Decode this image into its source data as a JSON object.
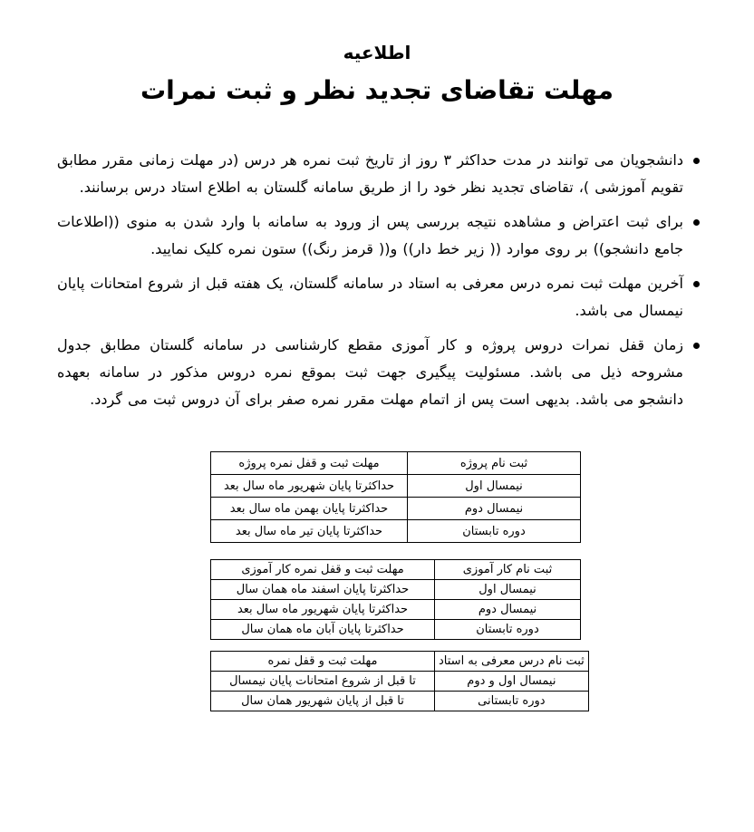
{
  "header": {
    "title": "اطلاعیه",
    "subtitle": "مهلت تقاضای تجدید نظر و ثبت نمرات"
  },
  "bullets": [
    {
      "text": "دانشجویان می توانند در مدت حداکثر ۳ روز از تاریخ ثبت نمره هر درس (در مهلت زمانی مقرر مطابق تقویم آموزشی )، تقاضای تجدید نظر خود را از طریق سامانه گلستان به اطلاع استاد درس برسانند."
    },
    {
      "text": "برای ثبت اعتراض و مشاهده نتیجه بررسی پس از ورود به سامانه با وارد شدن به منوی ((اطلاعات جامع دانشجو)) بر روی موارد (( زیر خط دار)) و(( قرمز رنگ)) ستون نمره کلیک نمایید."
    },
    {
      "text": "آخرین مهلت ثبت نمره درس معرفی به استاد در سامانه گلستان، یک هفته قبل از شروع امتحانات پایان نیمسال می باشد."
    },
    {
      "text": "زمان قفل نمرات دروس پروژه و کار آموزی مقطع کارشناسی در سامانه گلستان مطابق جدول مشروحه ذیل می باشد. مسئولیت پیگیری جهت ثبت بموقع نمره دروس مذکور در سامانه بعهده دانشجو می باشد. بدیهی است پس از اتمام مهلت مقرر نمره صفر برای آن دروس ثبت می گردد."
    }
  ],
  "tables": [
    {
      "header_term": "ثبت نام پروژه",
      "header_deadline": "مهلت ثبت و قفل نمره پروژه",
      "rows": [
        {
          "term": "نیمسال اول",
          "deadline": "حداکثرتا پایان شهریور ماه سال بعد"
        },
        {
          "term": "نیمسال دوم",
          "deadline": "حداکثرتا پایان بهمن ماه سال بعد"
        },
        {
          "term": "دوره تابستان",
          "deadline": "حداکثرتا پایان تیر ماه سال بعد"
        }
      ]
    },
    {
      "header_term": "ثبت نام کار آموزی",
      "header_deadline": "مهلت ثبت و قفل نمره کار آموزی",
      "rows": [
        {
          "term": "نیمسال اول",
          "deadline": "حداکثرتا پایان اسفند ماه همان سال"
        },
        {
          "term": "نیمسال دوم",
          "deadline": "حداکثرتا پایان شهریور ماه سال بعد"
        },
        {
          "term": "دوره تابستان",
          "deadline": "حداکثرتا پایان آبان ماه همان سال"
        }
      ]
    },
    {
      "header_term": "ثبت نام درس معرفی به استاد",
      "header_deadline": "مهلت ثبت و قفل نمره",
      "rows": [
        {
          "term": "نیمسال اول و دوم",
          "deadline": "تا قبل از شروع امتحانات پایان نیمسال"
        },
        {
          "term": "دوره تابستانی",
          "deadline": "تا قبل از پایان شهریور همان سال"
        }
      ]
    }
  ],
  "colors": {
    "text": "#000000",
    "background": "#ffffff",
    "table_border": "#000000"
  }
}
